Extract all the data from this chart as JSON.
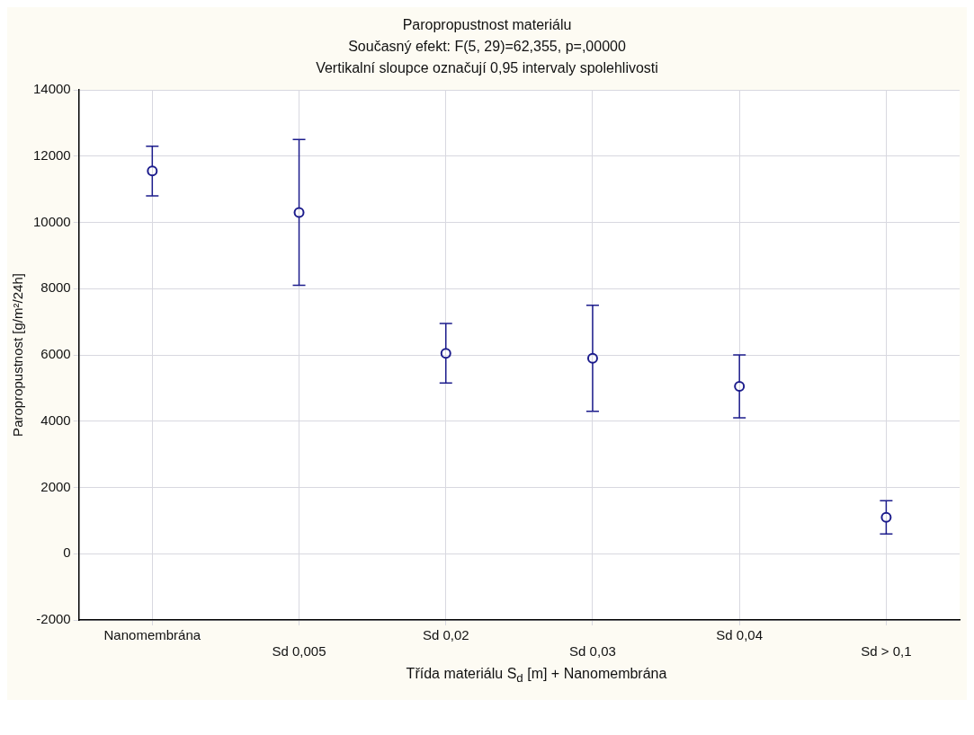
{
  "chart_data": {
    "type": "scatter",
    "title": "Paropropustnost materiálu",
    "subtitle": "Současný efekt: F(5, 29)=62,355, p=,00000",
    "annotations": [
      "Vertikalní sloupce označují 0,95 intervaly spolehlivosti"
    ],
    "xlabel": "Třída materiálu S$_{d}$ [m] + Nanomembrána",
    "ylabel": "Paropropustnost [g/m²/24h]",
    "categories": [
      "Nanomembrána",
      "Sd 0,005",
      "Sd 0,02",
      "Sd 0,03",
      "Sd 0,04",
      "Sd > 0,1"
    ],
    "values": [
      11550,
      10300,
      6050,
      5900,
      5050,
      1100
    ],
    "errors": [
      750,
      2200,
      900,
      1600,
      950,
      500
    ],
    "color": "#1c1c8c",
    "marker": "circle",
    "ylim": [
      -2000,
      14000
    ],
    "yticks": [
      -2000,
      0,
      2000,
      4000,
      6000,
      8000,
      10000,
      12000,
      14000
    ],
    "grid": true
  }
}
